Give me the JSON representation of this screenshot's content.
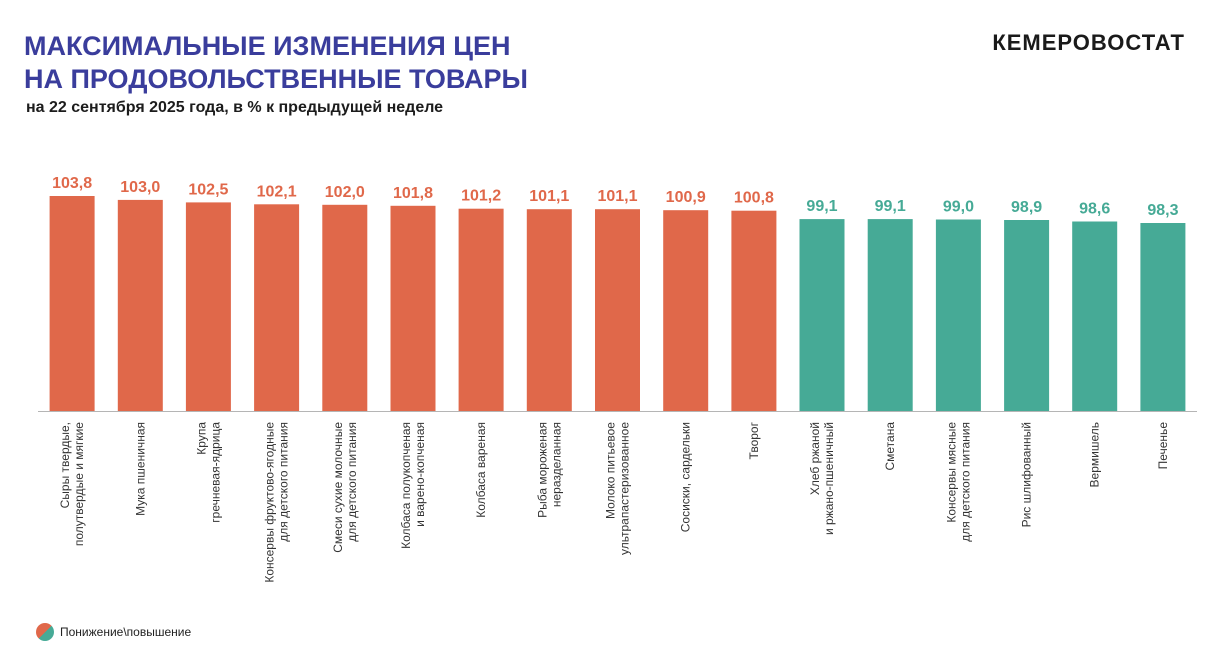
{
  "header": {
    "title_line1": "МАКСИМАЛЬНЫЕ ИЗМЕНЕНИЯ ЦЕН",
    "title_line2": "НА ПРОДОВОЛЬСТВЕННЫЕ ТОВАРЫ",
    "subtitle": "на 22 сентября 2025 года, в % к предыдущей неделе",
    "brand": "КЕМЕРОВОСТАТ"
  },
  "legend": {
    "label": "Понижение\\повышение",
    "icon": "half-circle-legend-icon"
  },
  "colors": {
    "increase": "#e0684a",
    "decrease": "#46aa96",
    "title": "#3a3d9c"
  },
  "chart_data": {
    "type": "bar",
    "title": "",
    "xlabel": "",
    "ylabel": "",
    "grid": false,
    "categories": [
      [
        "Сыры твердые,",
        "полутвердые и мягкие"
      ],
      [
        "Мука пшеничная"
      ],
      [
        "Крупа",
        "гречневая-ядрица"
      ],
      [
        "Консервы фруктово-ягодные",
        "для детского питания"
      ],
      [
        "Смеси сухие молочные",
        "для детского питания"
      ],
      [
        "Колбаса полукопченая",
        "и варено-копченая"
      ],
      [
        "Колбаса вареная"
      ],
      [
        "Рыба мороженая",
        "неразделанная"
      ],
      [
        "Молоко питьевое",
        "ультрапастеризованное"
      ],
      [
        "Сосиски, сардельки"
      ],
      [
        "Творог"
      ],
      [
        "Хлеб ржаной",
        "и ржано-пшеничный"
      ],
      [
        "Сметана"
      ],
      [
        "Консервы мясные",
        "для детского питания"
      ],
      [
        "Рис шлифованный"
      ],
      [
        "Вермишель"
      ],
      [
        "Печенье"
      ]
    ],
    "values": [
      103.8,
      103.0,
      102.5,
      102.1,
      102.0,
      101.8,
      101.2,
      101.1,
      101.1,
      100.9,
      100.8,
      99.1,
      99.1,
      99.0,
      98.9,
      98.6,
      98.3
    ],
    "value_labels": [
      "103,8",
      "103,0",
      "102,5",
      "102,1",
      "102,0",
      "101,8",
      "101,2",
      "101,1",
      "101,1",
      "100,9",
      "100,8",
      "99,1",
      "99,1",
      "99,0",
      "98,9",
      "98,6",
      "98,3"
    ],
    "directions": [
      "up",
      "up",
      "up",
      "up",
      "up",
      "up",
      "up",
      "up",
      "up",
      "up",
      "up",
      "down",
      "down",
      "down",
      "down",
      "down",
      "down"
    ],
    "ylim": [
      60,
      104
    ]
  }
}
